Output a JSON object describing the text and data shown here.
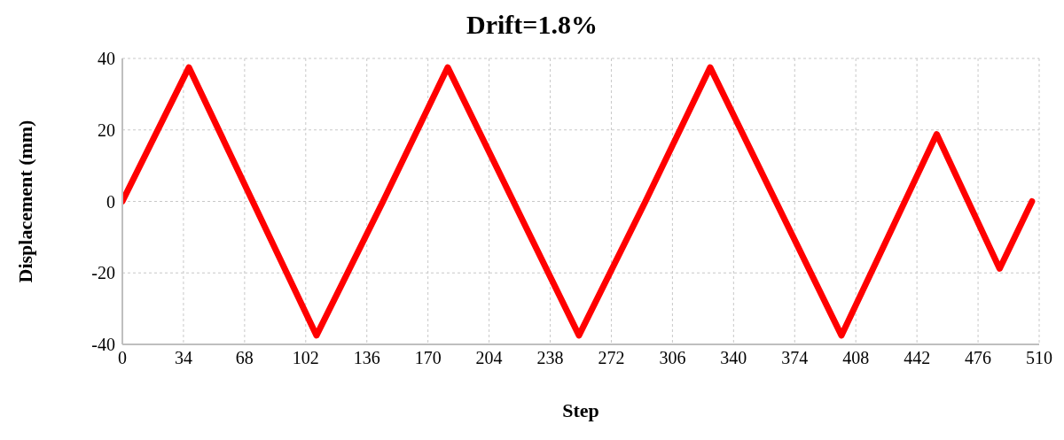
{
  "chart_data": {
    "type": "line",
    "title": "Drift=1.8%",
    "xlabel": "Step",
    "ylabel": "Displacement (mm)",
    "x": [
      0,
      37,
      108,
      145,
      181,
      254,
      291,
      327,
      400,
      453,
      488,
      506
    ],
    "series": [
      {
        "color": "#ff0000",
        "values": [
          0,
          37.5,
          -37.5,
          0,
          37.5,
          -37.5,
          0,
          37.5,
          -37.5,
          18.8,
          -18.8,
          0
        ]
      }
    ],
    "xlim": [
      0,
      510
    ],
    "xticks": [
      0,
      34,
      68,
      102,
      136,
      170,
      204,
      238,
      272,
      306,
      340,
      374,
      408,
      442,
      476,
      510
    ],
    "ylim": [
      -40,
      40
    ],
    "yticks": [
      -40,
      -20,
      0,
      20,
      40
    ],
    "grid": true,
    "marker": "none",
    "line_style": "solid",
    "legend": false
  }
}
